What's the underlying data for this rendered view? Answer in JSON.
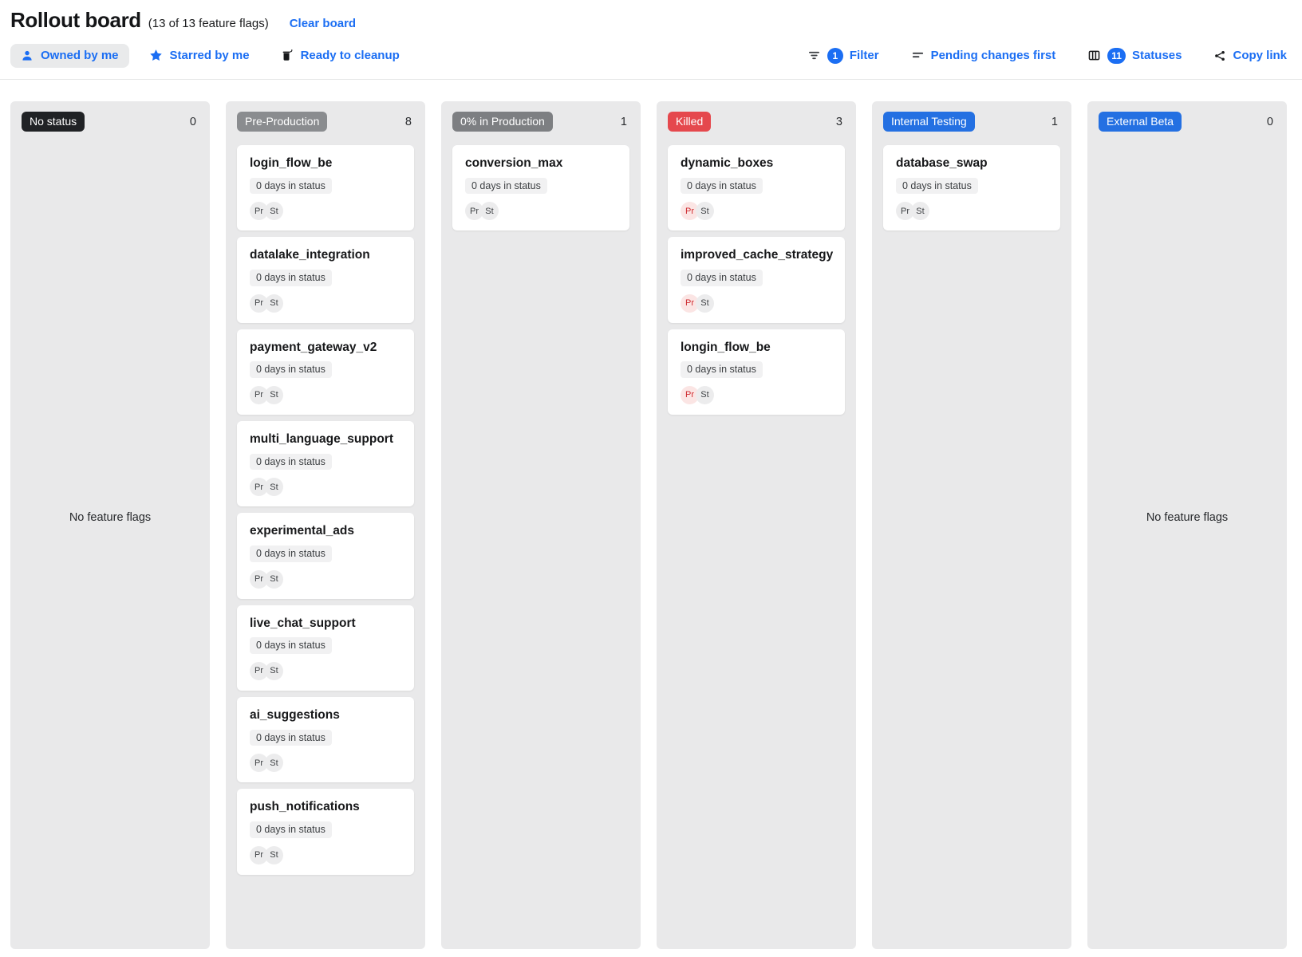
{
  "header": {
    "title": "Rollout board",
    "subtitle": "(13 of 13 feature flags)",
    "clear_label": "Clear board"
  },
  "toolbar": {
    "owned_by_me": "Owned by me",
    "starred_by_me": "Starred by me",
    "ready_to_cleanup": "Ready to cleanup",
    "filter": {
      "label": "Filter",
      "badge": "1"
    },
    "sort_label": "Pending changes first",
    "statuses": {
      "label": "Statuses",
      "badge": "11"
    },
    "copy_link": "Copy link"
  },
  "colors": {
    "link_blue": "#1b6ef3",
    "badge_blue": "#2470e2",
    "badge_red": "#e5484d",
    "badge_gray": "#85878a",
    "badge_black": "#202225",
    "column_bg": "#e9e9ea",
    "chip_red_bg": "#fbe5e4",
    "chip_red_text": "#ce2c31"
  },
  "board": {
    "empty_text": "No feature flags",
    "columns": [
      {
        "name": "No status",
        "count": "0",
        "badge_color": "#202225",
        "cards": []
      },
      {
        "name": "Pre-Production",
        "count": "8",
        "badge_color": "#8a8c8f",
        "cards": [
          {
            "title": "login_flow_be",
            "days": "0 days in status",
            "chips": [
              {
                "label": "Pr",
                "variant": "gray"
              },
              {
                "label": "St",
                "variant": "gray"
              }
            ]
          },
          {
            "title": "datalake_integration",
            "days": "0 days in status",
            "chips": [
              {
                "label": "Pr",
                "variant": "gray"
              },
              {
                "label": "St",
                "variant": "gray"
              }
            ]
          },
          {
            "title": "payment_gateway_v2",
            "days": "0 days in status",
            "chips": [
              {
                "label": "Pr",
                "variant": "gray"
              },
              {
                "label": "St",
                "variant": "gray"
              }
            ]
          },
          {
            "title": "multi_language_support",
            "days": "0 days in status",
            "chips": [
              {
                "label": "Pr",
                "variant": "gray"
              },
              {
                "label": "St",
                "variant": "gray"
              }
            ]
          },
          {
            "title": "experimental_ads",
            "days": "0 days in status",
            "chips": [
              {
                "label": "Pr",
                "variant": "gray"
              },
              {
                "label": "St",
                "variant": "gray"
              }
            ]
          },
          {
            "title": "live_chat_support",
            "days": "0 days in status",
            "chips": [
              {
                "label": "Pr",
                "variant": "gray"
              },
              {
                "label": "St",
                "variant": "gray"
              }
            ]
          },
          {
            "title": "ai_suggestions",
            "days": "0 days in status",
            "chips": [
              {
                "label": "Pr",
                "variant": "gray"
              },
              {
                "label": "St",
                "variant": "gray"
              }
            ]
          },
          {
            "title": "push_notifications",
            "days": "0 days in status",
            "chips": [
              {
                "label": "Pr",
                "variant": "gray"
              },
              {
                "label": "St",
                "variant": "gray"
              }
            ]
          }
        ]
      },
      {
        "name": "0% in Production",
        "count": "1",
        "badge_color": "#7d7f82",
        "cards": [
          {
            "title": "conversion_max",
            "days": "0 days in status",
            "chips": [
              {
                "label": "Pr",
                "variant": "gray"
              },
              {
                "label": "St",
                "variant": "gray"
              }
            ]
          }
        ]
      },
      {
        "name": "Killed",
        "count": "3",
        "badge_color": "#e5484d",
        "cards": [
          {
            "title": "dynamic_boxes",
            "days": "0 days in status",
            "chips": [
              {
                "label": "Pr",
                "variant": "red"
              },
              {
                "label": "St",
                "variant": "gray"
              }
            ]
          },
          {
            "title": "improved_cache_strategy",
            "days": "0 days in status",
            "chips": [
              {
                "label": "Pr",
                "variant": "red"
              },
              {
                "label": "St",
                "variant": "gray"
              }
            ]
          },
          {
            "title": "longin_flow_be",
            "days": "0 days in status",
            "chips": [
              {
                "label": "Pr",
                "variant": "red"
              },
              {
                "label": "St",
                "variant": "gray"
              }
            ]
          }
        ]
      },
      {
        "name": "Internal Testing",
        "count": "1",
        "badge_color": "#2470e2",
        "cards": [
          {
            "title": "database_swap",
            "days": "0 days in status",
            "chips": [
              {
                "label": "Pr",
                "variant": "gray"
              },
              {
                "label": "St",
                "variant": "gray"
              }
            ]
          }
        ]
      },
      {
        "name": "External Beta",
        "count": "0",
        "badge_color": "#2470e2",
        "cards": []
      }
    ]
  }
}
